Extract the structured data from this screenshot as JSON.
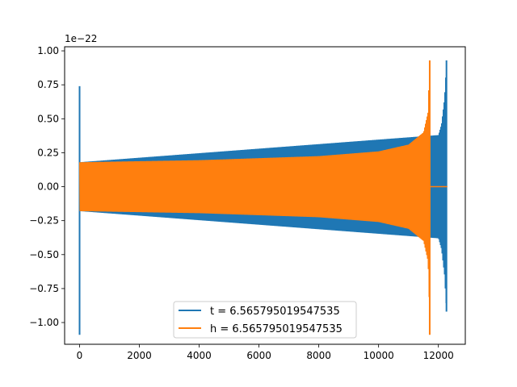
{
  "chart_data": {
    "type": "line",
    "title": "",
    "xlabel": "",
    "ylabel": "",
    "offset_label": "1e−22",
    "xlim": [
      -500,
      12900
    ],
    "ylim": [
      -1.16,
      1.03
    ],
    "xticks": [
      {
        "value": 0,
        "label": "0"
      },
      {
        "value": 2000,
        "label": "2000"
      },
      {
        "value": 4000,
        "label": "4000"
      },
      {
        "value": 6000,
        "label": "6000"
      },
      {
        "value": 8000,
        "label": "8000"
      },
      {
        "value": 10000,
        "label": "10000"
      },
      {
        "value": 12000,
        "label": "12000"
      }
    ],
    "yticks": [
      {
        "value": -1.0,
        "label": "−1.00"
      },
      {
        "value": -0.75,
        "label": "−0.75"
      },
      {
        "value": -0.5,
        "label": "−0.50"
      },
      {
        "value": -0.25,
        "label": "−0.25"
      },
      {
        "value": 0.0,
        "label": "0.00"
      },
      {
        "value": 0.25,
        "label": "0.25"
      },
      {
        "value": 0.5,
        "label": "0.50"
      },
      {
        "value": 0.75,
        "label": "0.75"
      },
      {
        "value": 1.0,
        "label": "1.00"
      }
    ],
    "grid": false,
    "legend_position": "lower-center",
    "series": [
      {
        "name": "t = 6.565795019547535",
        "color": "#1f77b4",
        "spike_at_start": {
          "x": 0,
          "max": 0.74,
          "min": -1.09
        },
        "envelope": [
          {
            "x": 0,
            "amp": 0.18
          },
          {
            "x": 12000,
            "amp": 0.38
          },
          {
            "x": 12100,
            "amp": 0.46
          },
          {
            "x": 12200,
            "amp": 0.65
          },
          {
            "x": 12270,
            "amp": 0.93
          }
        ],
        "merger": {
          "x": 12270,
          "max": 0.93,
          "min": -0.92
        },
        "ringdown_end_x": 12300
      },
      {
        "name": "h = 6.565795019547535",
        "color": "#ff7f0e",
        "envelope": [
          {
            "x": 0,
            "amp": 0.18
          },
          {
            "x": 4000,
            "amp": 0.195
          },
          {
            "x": 8000,
            "amp": 0.225
          },
          {
            "x": 10000,
            "amp": 0.26
          },
          {
            "x": 11000,
            "amp": 0.31
          },
          {
            "x": 11500,
            "amp": 0.4
          },
          {
            "x": 11650,
            "amp": 0.55
          },
          {
            "x": 11700,
            "amp": 0.93
          }
        ],
        "merger": {
          "x": 11710,
          "max": 0.93,
          "min": -1.09
        },
        "tail": {
          "x_start": 11710,
          "x_end": 12300,
          "value": 0.0
        }
      }
    ]
  }
}
